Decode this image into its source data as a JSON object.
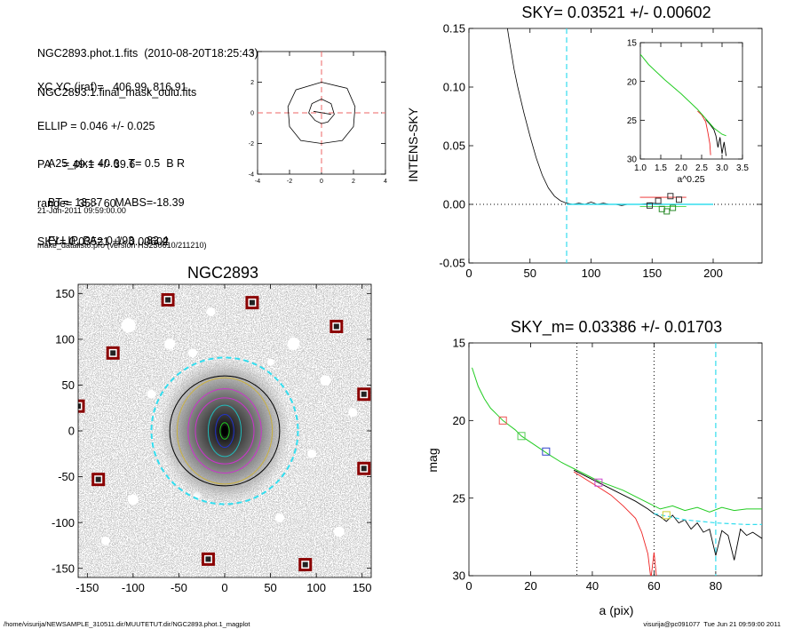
{
  "header": {
    "file_line": "NGC2893.phot.1.fits  (2010-08-20T18:25:43)",
    "mask_line": "NGC2893.1.final_mask_oulu.fits",
    "params": [
      "XC,YC (iraf)=   406.99, 816.91",
      "ELLIP = 0.046 +/- 0.025",
      "PA    = 49.1 +/- 39.6",
      "range=  35.-  60.",
      "SKY= 0.03521 +/- 0.00602"
    ],
    "derived": [
      "A25_pix= 40.6   T= 0.5  B R",
      "BT=  13.87    MABS=-18.39",
      "ELLIP, PA= 0.193    83.4"
    ],
    "date_line": "21-Jun-2011 09:59:00.00",
    "program_line": "make_datalist0.pro (version HS230610/211210)"
  },
  "footer": {
    "path": "/home/visurija/NEWSAMPLE_310511.dir/MUUTETUT.dir/NGC2893.phot.1_magplot",
    "user": "visurija@pc091077  Tue Jun 21 09:59:00 2011"
  },
  "colors": {
    "sky_line": "#33ddee",
    "red": "#ee2222",
    "green": "#22cc22",
    "blue": "#2233cc",
    "marker": "#8b0000",
    "grid": "#ee6666"
  },
  "chart_data": [
    {
      "id": "center",
      "type": "line",
      "title": "",
      "xlim": [
        -4,
        4
      ],
      "ylim": [
        -4,
        4
      ],
      "xticks": [
        -4,
        -2,
        0,
        2,
        4
      ],
      "yticks": [
        -4,
        -2,
        0,
        2,
        4
      ],
      "series": [
        {
          "style": "outer_contour",
          "x": [
            0,
            1.6,
            2.1,
            2.0,
            1.3,
            0,
            -1.3,
            -2.0,
            -2.1,
            -1.6,
            0
          ],
          "y": [
            2.0,
            1.6,
            0.4,
            -0.9,
            -1.8,
            -2.0,
            -1.8,
            -0.9,
            0.4,
            1.5,
            2.0
          ]
        },
        {
          "style": "inner_contour",
          "x": [
            0,
            0.6,
            0.8,
            0.4,
            0,
            -0.4,
            -0.8,
            -0.6,
            0
          ],
          "y": [
            0.9,
            0.6,
            -0.1,
            -0.6,
            -0.7,
            -0.5,
            0,
            0.6,
            0.9
          ]
        },
        {
          "style": "center_mark",
          "x": [
            -0.5,
            0.6
          ],
          "y": [
            0.1,
            -0.1
          ]
        }
      ]
    },
    {
      "id": "sky",
      "type": "line",
      "title": "SKY= 0.03521 +/- 0.00602",
      "ylabel": "INTENS-SKY",
      "xlim": [
        0,
        240
      ],
      "ylim": [
        -0.05,
        0.15
      ],
      "xticks": [
        0,
        50,
        100,
        150,
        200
      ],
      "yticks": [
        -0.05,
        0.0,
        0.05,
        0.1,
        0.15
      ],
      "ytick_labels": [
        "-0.05",
        "0.00",
        "0.05",
        "0.10",
        "0.15"
      ],
      "sky_radius": 80,
      "profile": {
        "x": [
          30,
          33,
          37,
          40,
          45,
          50,
          55,
          60,
          65,
          70,
          75,
          80,
          85,
          90,
          95,
          100,
          105,
          110,
          115,
          120,
          125,
          130,
          140,
          150,
          160,
          170,
          180,
          190,
          200
        ],
        "y": [
          0.16,
          0.14,
          0.115,
          0.1,
          0.078,
          0.058,
          0.04,
          0.025,
          0.014,
          0.007,
          0.003,
          0.001,
          0.0,
          0.001,
          0.0,
          0.002,
          0.0,
          0.001,
          0.0,
          0.0,
          -0.001,
          0.0,
          0.0,
          0.001,
          0.0,
          0.0,
          0.0,
          0.0,
          0.0
        ]
      },
      "fit": {
        "x": [
          80,
          200
        ],
        "y": [
          0.0,
          0.0
        ]
      },
      "squares": {
        "x": [
          148,
          155,
          158,
          162,
          165,
          167,
          172
        ],
        "y": [
          -0.001,
          0.003,
          -0.004,
          -0.006,
          0.007,
          -0.003,
          0.004
        ]
      },
      "inset": {
        "xlabel": "a^0.25",
        "xlim": [
          1.0,
          3.5
        ],
        "ylim": [
          15,
          30
        ],
        "xticks": [
          1.0,
          1.5,
          2.0,
          2.5,
          3.0,
          3.5
        ],
        "yticks": [
          15,
          20,
          25,
          30
        ],
        "xtick_labels": [
          "1.0",
          "1.5",
          "2.0",
          "2.5",
          "3.0",
          "3.5"
        ],
        "green": {
          "x": [
            1.0,
            1.2,
            1.4,
            1.6,
            1.8,
            2.0,
            2.2,
            2.4,
            2.6,
            2.8,
            3.0,
            3.1
          ],
          "y": [
            16.5,
            17.8,
            18.8,
            19.8,
            20.7,
            21.6,
            22.6,
            23.6,
            24.8,
            26.0,
            26.8,
            27.0
          ]
        },
        "red": {
          "x": [
            2.4,
            2.5,
            2.6,
            2.65,
            2.7,
            2.72
          ],
          "y": [
            23.8,
            24.3,
            25.2,
            26.5,
            28.0,
            29.5
          ]
        },
        "black": {
          "x": [
            2.6,
            2.7,
            2.8,
            2.85,
            2.9,
            2.95,
            3.0,
            3.05,
            3.1
          ],
          "y": [
            24.9,
            25.5,
            26.2,
            27.0,
            28.5,
            27.2,
            29.3,
            27.8,
            29.6
          ]
        }
      }
    },
    {
      "id": "image",
      "type": "image",
      "title": "NGC2893",
      "xlim": [
        -160,
        160
      ],
      "ylim": [
        -160,
        160
      ],
      "xticks": [
        -150,
        -100,
        -50,
        0,
        50,
        100,
        150
      ],
      "yticks": [
        -150,
        -100,
        -50,
        0,
        50,
        100,
        150
      ],
      "markers": {
        "x": [
          -62,
          30,
          122,
          -122,
          -160,
          152,
          -138,
          152,
          -18,
          88
        ],
        "y": [
          143,
          140,
          114,
          85,
          27,
          40,
          -53,
          -41,
          -140,
          -146
        ]
      }
    },
    {
      "id": "mag",
      "type": "line",
      "title": "SKY_m=  0.03386 +/- 0.01703",
      "xlabel": "a (pix)",
      "ylabel": "mag",
      "xlim": [
        0,
        95
      ],
      "ylim": [
        15,
        30
      ],
      "xticks": [
        0,
        20,
        40,
        60,
        80
      ],
      "yticks": [
        15,
        20,
        25,
        30
      ],
      "ytick_labels": [
        "15",
        "20",
        "25",
        "30"
      ],
      "vlines": [
        35,
        60
      ],
      "sky_radius": 80,
      "green": {
        "x": [
          1,
          3,
          5,
          7,
          9,
          11,
          13,
          15,
          17,
          20,
          23,
          26,
          30,
          34,
          38,
          42,
          46,
          50,
          54,
          58,
          62,
          66,
          70,
          74,
          78,
          82,
          86,
          90,
          95
        ],
        "y": [
          16.6,
          17.8,
          18.6,
          19.2,
          19.6,
          20.0,
          20.3,
          20.6,
          21.0,
          21.4,
          21.8,
          22.2,
          22.7,
          23.1,
          23.5,
          23.9,
          24.2,
          24.5,
          24.9,
          25.3,
          25.7,
          25.5,
          25.8,
          25.6,
          25.9,
          25.6,
          25.8,
          25.7,
          25.7
        ]
      },
      "black": {
        "x": [
          34,
          38,
          42,
          46,
          50,
          54,
          58,
          60,
          62,
          64,
          66,
          68,
          70,
          72,
          74,
          76,
          78,
          80,
          82,
          84,
          86,
          88,
          90,
          92,
          95
        ],
        "y": [
          23.2,
          23.6,
          24.0,
          24.4,
          24.8,
          25.2,
          25.7,
          26.0,
          26.2,
          26.5,
          26.1,
          26.6,
          26.4,
          27.0,
          26.6,
          27.2,
          27.0,
          28.7,
          27.1,
          27.4,
          29.0,
          27.0,
          27.4,
          27.2,
          27.6
        ]
      },
      "red": {
        "x": [
          34,
          38,
          42,
          46,
          50,
          54,
          56,
          58,
          59,
          60,
          61
        ],
        "y": [
          23.3,
          23.8,
          24.3,
          24.8,
          25.5,
          26.3,
          27.2,
          28.6,
          30.2,
          28.5,
          30.5
        ]
      },
      "cyan": {
        "x": [
          60,
          70,
          80,
          90,
          95
        ],
        "y": [
          26.0,
          26.4,
          26.6,
          26.7,
          26.7
        ]
      },
      "squares": {
        "x": [
          11,
          17,
          25,
          42,
          64
        ],
        "y": [
          20.0,
          21.0,
          22.0,
          24.0,
          26.1
        ],
        "colors": [
          "#ee5555",
          "#55cc55",
          "#3344cc",
          "#cc44cc",
          "#cccc33"
        ]
      }
    }
  ]
}
